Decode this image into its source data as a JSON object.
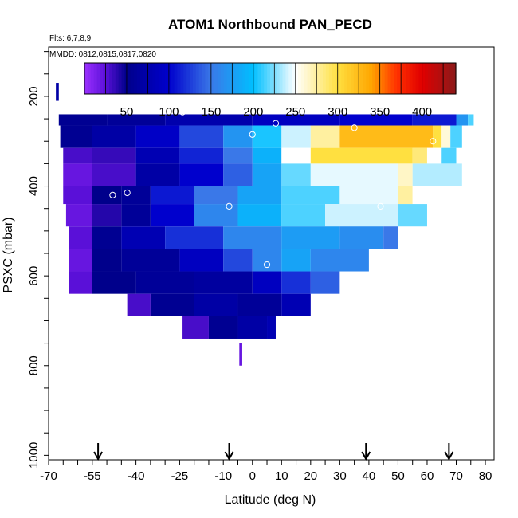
{
  "chart_data": {
    "type": "heatmap",
    "title": "ATOM1 Northbound PAN_PECD",
    "flights_note": "Flts: 6,7,8,9",
    "dates_note": "MMDD: 0812,0815,0817,0820",
    "xlabel": "Latitude (deg N)",
    "ylabel": "PSXC (mbar)",
    "xlim": [
      -70,
      83
    ],
    "ylim": [
      1010,
      90
    ],
    "x_ticks": [
      -70,
      -55,
      -40,
      -25,
      -10,
      0,
      10,
      20,
      30,
      40,
      50,
      60,
      70,
      80
    ],
    "y_ticks": [
      200,
      400,
      600,
      800,
      1000
    ],
    "colorbar": {
      "range": [
        0,
        440
      ],
      "ticks": [
        50,
        100,
        150,
        200,
        250,
        300,
        350,
        400
      ],
      "stops": [
        {
          "v": 0,
          "c": "#9b30ff"
        },
        {
          "v": 25,
          "c": "#5a10d8"
        },
        {
          "v": 50,
          "c": "#00008b"
        },
        {
          "v": 100,
          "c": "#0000cd"
        },
        {
          "v": 150,
          "c": "#3a78e8"
        },
        {
          "v": 200,
          "c": "#00bfff"
        },
        {
          "v": 250,
          "c": "#ffffff"
        },
        {
          "v": 300,
          "c": "#ffe040"
        },
        {
          "v": 340,
          "c": "#ffa500"
        },
        {
          "v": 370,
          "c": "#ff3000"
        },
        {
          "v": 400,
          "c": "#e00000"
        },
        {
          "v": 440,
          "c": "#8b1a1a"
        }
      ]
    },
    "rows": [
      {
        "p_top": 240,
        "p_bot": 265,
        "cells": [
          [
            -66.5,
            -50,
            55
          ],
          [
            -50,
            -30,
            60
          ],
          [
            -30,
            0,
            75
          ],
          [
            0,
            30,
            90
          ],
          [
            30,
            55,
            100
          ],
          [
            55,
            70,
            110
          ],
          [
            70,
            74,
            170
          ],
          [
            74,
            76,
            215
          ]
        ]
      },
      {
        "p_top": 265,
        "p_bot": 315,
        "cells": [
          [
            -66,
            -55,
            55
          ],
          [
            -55,
            -40,
            70
          ],
          [
            -40,
            -25,
            95
          ],
          [
            -25,
            -10,
            130
          ],
          [
            -10,
            0,
            170
          ],
          [
            0,
            10,
            205
          ],
          [
            10,
            20,
            240
          ],
          [
            20,
            30,
            275
          ],
          [
            30,
            62,
            325
          ],
          [
            62,
            65,
            300
          ],
          [
            65,
            68,
            260
          ],
          [
            68,
            72,
            215
          ]
        ]
      },
      {
        "p_top": 315,
        "p_bot": 350,
        "cells": [
          [
            -65,
            -55,
            30
          ],
          [
            -55,
            -40,
            35
          ],
          [
            -40,
            -25,
            80
          ],
          [
            -25,
            -10,
            115
          ],
          [
            -10,
            0,
            150
          ],
          [
            0,
            10,
            190
          ],
          [
            10,
            20,
            250
          ],
          [
            20,
            55,
            300
          ],
          [
            55,
            60,
            285
          ],
          [
            60,
            65,
            250
          ],
          [
            65,
            70,
            215
          ]
        ]
      },
      {
        "p_top": 350,
        "p_bot": 400,
        "cells": [
          [
            -65,
            -55,
            20
          ],
          [
            -55,
            -40,
            30
          ],
          [
            -40,
            -25,
            70
          ],
          [
            -25,
            -10,
            100
          ],
          [
            -10,
            0,
            140
          ],
          [
            0,
            10,
            180
          ],
          [
            10,
            20,
            220
          ],
          [
            20,
            50,
            245
          ],
          [
            50,
            55,
            265
          ],
          [
            55,
            72,
            235
          ]
        ]
      },
      {
        "p_top": 400,
        "p_bot": 440,
        "cells": [
          [
            -65,
            -55,
            25
          ],
          [
            -55,
            -45,
            50
          ],
          [
            -45,
            -35,
            60
          ],
          [
            -35,
            -20,
            110
          ],
          [
            -20,
            -5,
            150
          ],
          [
            -5,
            10,
            180
          ],
          [
            10,
            30,
            215
          ],
          [
            30,
            50,
            245
          ],
          [
            50,
            55,
            275
          ],
          [
            55,
            70,
            250
          ]
        ]
      },
      {
        "p_top": 440,
        "p_bot": 490,
        "cells": [
          [
            -64,
            -55,
            20
          ],
          [
            -55,
            -45,
            40
          ],
          [
            -45,
            -35,
            60
          ],
          [
            -35,
            -20,
            100
          ],
          [
            -20,
            -5,
            160
          ],
          [
            -5,
            10,
            190
          ],
          [
            10,
            25,
            215
          ],
          [
            25,
            50,
            240
          ],
          [
            50,
            60,
            220
          ]
        ]
      },
      {
        "p_top": 490,
        "p_bot": 540,
        "cells": [
          [
            -63,
            -55,
            25
          ],
          [
            -55,
            -45,
            55
          ],
          [
            -45,
            -30,
            80
          ],
          [
            -30,
            -10,
            120
          ],
          [
            -10,
            10,
            160
          ],
          [
            10,
            30,
            175
          ],
          [
            30,
            45,
            165
          ],
          [
            45,
            50,
            150
          ]
        ]
      },
      {
        "p_top": 540,
        "p_bot": 590,
        "cells": [
          [
            -63,
            -55,
            20
          ],
          [
            -55,
            -45,
            50
          ],
          [
            -45,
            -25,
            60
          ],
          [
            -25,
            -10,
            90
          ],
          [
            -10,
            0,
            130
          ],
          [
            0,
            10,
            160
          ],
          [
            10,
            20,
            180
          ],
          [
            20,
            40,
            160
          ]
        ]
      },
      {
        "p_top": 590,
        "p_bot": 640,
        "cells": [
          [
            -63,
            -55,
            25
          ],
          [
            -55,
            -40,
            50
          ],
          [
            -40,
            -20,
            60
          ],
          [
            -20,
            0,
            65
          ],
          [
            0,
            10,
            90
          ],
          [
            10,
            20,
            120
          ],
          [
            20,
            30,
            140
          ]
        ]
      },
      {
        "p_top": 640,
        "p_bot": 690,
        "cells": [
          [
            -43,
            -35,
            30
          ],
          [
            -35,
            -20,
            55
          ],
          [
            -20,
            -5,
            70
          ],
          [
            -5,
            10,
            60
          ],
          [
            10,
            20,
            80
          ]
        ]
      },
      {
        "p_top": 690,
        "p_bot": 740,
        "cells": [
          [
            -24,
            -15,
            30
          ],
          [
            -15,
            -5,
            55
          ],
          [
            -5,
            5,
            70
          ],
          [
            5,
            8,
            80
          ]
        ]
      },
      {
        "p_top": 750,
        "p_bot": 800,
        "cells": [
          [
            -4.5,
            -3.5,
            20
          ]
        ]
      },
      {
        "p_top": 170,
        "p_bot": 210,
        "cells": [
          [
            -67.5,
            -66.5,
            70
          ]
        ]
      }
    ],
    "circles": [
      [
        -24,
        235
      ],
      [
        -8,
        445
      ],
      [
        0,
        285
      ],
      [
        8,
        260
      ],
      [
        5,
        575
      ],
      [
        -43,
        415
      ],
      [
        -48,
        420
      ],
      [
        30,
        225
      ],
      [
        35,
        270
      ],
      [
        44,
        445
      ],
      [
        62,
        300
      ],
      [
        70,
        215
      ],
      [
        72,
        325
      ],
      [
        72,
        415
      ],
      [
        -59,
        655
      ]
    ],
    "arrows_at": [
      -53,
      -8,
      39,
      67.5
    ]
  }
}
